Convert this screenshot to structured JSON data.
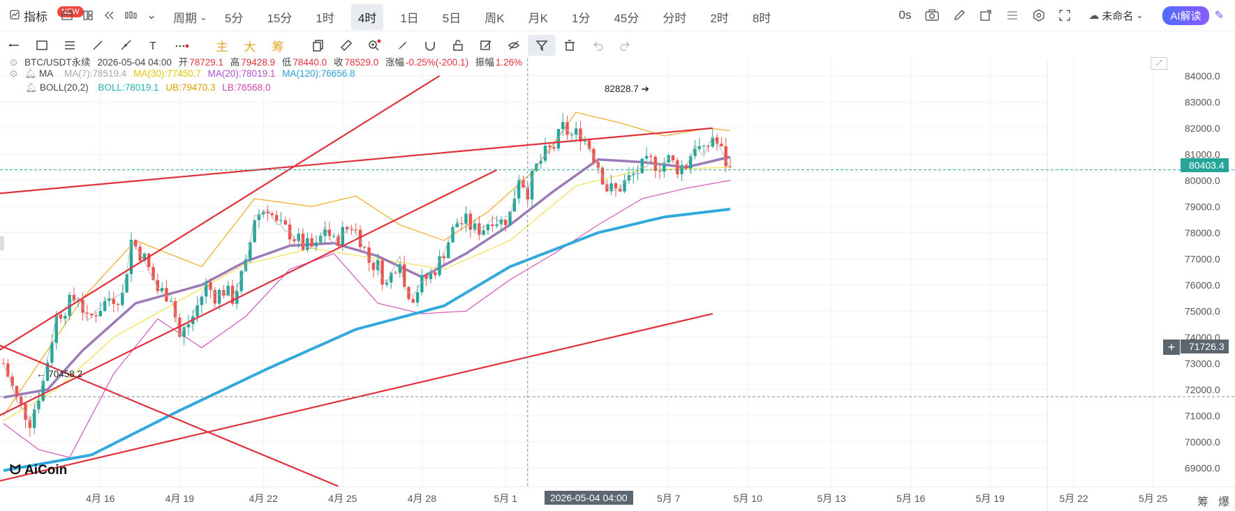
{
  "topbar": {
    "indicator_label": "指标",
    "new_badge": "NEW",
    "period_menu_label": "周期",
    "periods": [
      "5分",
      "15分",
      "1时",
      "4时",
      "1日",
      "5日",
      "周K",
      "月K",
      "1分",
      "45分",
      "分时",
      "2时",
      "8时"
    ],
    "active_period": "4时",
    "countdown": "0s",
    "layout_name": "未命名",
    "ai_button": "AI解读"
  },
  "toolbar2": {
    "tools": [
      "line-icon",
      "rect-icon",
      "parallel-icon",
      "segment-icon",
      "ray-icon",
      "text-icon",
      "more-icon",
      "主",
      "大",
      "筹",
      "copy-icon",
      "ruler-icon",
      "zoom-icon",
      "brush-icon",
      "magnet-icon",
      "lock-icon",
      "edit-icon",
      "eye-icon",
      "filter-icon",
      "trash-icon",
      "undo-icon",
      "redo-icon"
    ]
  },
  "legend": {
    "symbol": "BTC/USDT永续",
    "datetime": "2026-05-04 04:00",
    "open_label": "开",
    "open": "78729.1",
    "high_label": "高",
    "high": "79428.9",
    "low_label": "低",
    "low": "78440.0",
    "close_label": "收",
    "close": "78529.0",
    "change_label": "涨幅",
    "change": "-0.25%(-200.1)",
    "amp_label": "振幅",
    "amp": "1.26%",
    "ma_name": "MA",
    "ma7": "MA(7):78519.4",
    "ma30": "MA(30):77450.7",
    "ma20": "MA(20):78019.1",
    "ma120": "MA(120):76656.8",
    "boll_name": "BOLL(20,2)",
    "boll_mid": "BOLL:78019.1",
    "boll_ub": "UB:79470.3",
    "boll_lb": "LB:76568.0"
  },
  "colors": {
    "up": "#26a69a",
    "down": "#ef5350",
    "ma7": "#b0b0b0",
    "ma30": "#f5e04a",
    "ma20": "#9c7ab8",
    "ma120": "#32a9dc",
    "boll_ub": "#f0b030",
    "boll_lb": "#d65fbf",
    "trendline": "#e0303c",
    "last_price": "#26a69a",
    "crosshair": "#5c6670"
  },
  "annotations": {
    "high_mark": "82828.7",
    "low_mark": "70458.2",
    "last_price": "80403.4",
    "cross_price": "71726.3",
    "cross_time": "2026-05-04 04:00"
  },
  "bottom_right": [
    "筹",
    "爆"
  ],
  "logo": "AiCoin",
  "chart_data": {
    "type": "candlestick",
    "title": "BTC/USDT永续",
    "interval": "4时",
    "ylim": [
      68500,
      84500
    ],
    "y_ticks": [
      "84000.0",
      "83000.0",
      "82000.0",
      "81000.0",
      "80000.0",
      "79000.0",
      "78000.0",
      "77000.0",
      "76000.0",
      "75000.0",
      "74000.0",
      "73000.0",
      "72000.0",
      "71000.0",
      "70000.0",
      "69000.0"
    ],
    "x_ticks": [
      "4月 16",
      "4月 19",
      "4月 22",
      "4月 25",
      "4月 28",
      "5月 1",
      "5月 7",
      "5月 10",
      "5月 13",
      "5月 16",
      "5月 19",
      "5月 22",
      "5月 25"
    ],
    "grid": true,
    "price_path": [
      [
        0,
        73000
      ],
      [
        3,
        71600
      ],
      [
        6,
        70800
      ],
      [
        9,
        72300
      ],
      [
        12,
        74800
      ],
      [
        15,
        75300
      ],
      [
        17,
        75600
      ],
      [
        19,
        74600
      ],
      [
        21,
        75000
      ],
      [
        24,
        75500
      ],
      [
        27,
        75600
      ],
      [
        29,
        77700
      ],
      [
        32,
        77000
      ],
      [
        35,
        75800
      ],
      [
        38,
        75600
      ],
      [
        40,
        74000
      ],
      [
        43,
        74800
      ],
      [
        46,
        76000
      ],
      [
        48,
        75600
      ],
      [
        50,
        75800
      ],
      [
        52,
        75500
      ],
      [
        55,
        76700
      ],
      [
        57,
        78600
      ],
      [
        60,
        79000
      ],
      [
        62,
        78300
      ],
      [
        65,
        78000
      ],
      [
        68,
        77500
      ],
      [
        71,
        77400
      ],
      [
        73,
        78200
      ],
      [
        75,
        77600
      ],
      [
        77,
        78000
      ],
      [
        79,
        78300
      ],
      [
        81,
        77800
      ],
      [
        83,
        76900
      ],
      [
        85,
        76700
      ],
      [
        87,
        76000
      ],
      [
        89,
        76800
      ],
      [
        90,
        77100
      ],
      [
        91,
        75900
      ],
      [
        93,
        75600
      ],
      [
        95,
        76100
      ],
      [
        97,
        76400
      ],
      [
        99,
        76900
      ],
      [
        101,
        77700
      ],
      [
        103,
        78400
      ],
      [
        105,
        78400
      ],
      [
        107,
        78100
      ],
      [
        109,
        78200
      ],
      [
        111,
        78600
      ],
      [
        113,
        78400
      ],
      [
        115,
        78700
      ],
      [
        117,
        80200
      ],
      [
        119,
        79600
      ],
      [
        121,
        80500
      ],
      [
        123,
        81000
      ],
      [
        125,
        81300
      ],
      [
        127,
        82000
      ],
      [
        129,
        81700
      ],
      [
        131,
        81800
      ],
      [
        133,
        81300
      ],
      [
        135,
        80600
      ],
      [
        137,
        79700
      ],
      [
        139,
        79600
      ],
      [
        141,
        79900
      ],
      [
        143,
        80200
      ],
      [
        145,
        80500
      ],
      [
        147,
        80700
      ],
      [
        149,
        80600
      ],
      [
        151,
        80800
      ],
      [
        153,
        80500
      ],
      [
        155,
        80600
      ],
      [
        157,
        81400
      ],
      [
        159,
        81000
      ],
      [
        161,
        81700
      ],
      [
        163,
        81100
      ],
      [
        164,
        80700
      ],
      [
        165,
        80400
      ]
    ],
    "ma120_path": [
      [
        0,
        68900
      ],
      [
        20,
        69500
      ],
      [
        40,
        71200
      ],
      [
        60,
        72800
      ],
      [
        80,
        74300
      ],
      [
        100,
        75200
      ],
      [
        115,
        76700
      ],
      [
        135,
        78000
      ],
      [
        150,
        78600
      ],
      [
        165,
        78900
      ]
    ],
    "ma20_path": [
      [
        0,
        71700
      ],
      [
        10,
        72000
      ],
      [
        18,
        73500
      ],
      [
        30,
        75300
      ],
      [
        45,
        76000
      ],
      [
        55,
        76900
      ],
      [
        65,
        77500
      ],
      [
        75,
        77600
      ],
      [
        85,
        77100
      ],
      [
        95,
        76300
      ],
      [
        105,
        77200
      ],
      [
        115,
        78300
      ],
      [
        125,
        79600
      ],
      [
        135,
        80800
      ],
      [
        145,
        80700
      ],
      [
        155,
        80500
      ],
      [
        165,
        80900
      ]
    ],
    "ma30_path": [
      [
        0,
        70800
      ],
      [
        12,
        72000
      ],
      [
        25,
        74000
      ],
      [
        40,
        75400
      ],
      [
        55,
        76800
      ],
      [
        70,
        77400
      ],
      [
        85,
        77000
      ],
      [
        100,
        76600
      ],
      [
        115,
        77700
      ],
      [
        130,
        79800
      ],
      [
        145,
        80400
      ],
      [
        165,
        80500
      ]
    ],
    "boll_ub_path": [
      [
        0,
        71000
      ],
      [
        10,
        73500
      ],
      [
        18,
        75500
      ],
      [
        30,
        77700
      ],
      [
        45,
        76700
      ],
      [
        57,
        79300
      ],
      [
        70,
        79000
      ],
      [
        80,
        79400
      ],
      [
        90,
        78300
      ],
      [
        100,
        77700
      ],
      [
        110,
        78800
      ],
      [
        120,
        80300
      ],
      [
        130,
        82600
      ],
      [
        140,
        82200
      ],
      [
        150,
        81700
      ],
      [
        160,
        82000
      ],
      [
        165,
        81900
      ]
    ],
    "boll_lb_path": [
      [
        0,
        70700
      ],
      [
        8,
        69700
      ],
      [
        15,
        69400
      ],
      [
        25,
        72600
      ],
      [
        35,
        74700
      ],
      [
        45,
        73600
      ],
      [
        55,
        74800
      ],
      [
        65,
        76600
      ],
      [
        75,
        77200
      ],
      [
        85,
        75300
      ],
      [
        95,
        74900
      ],
      [
        105,
        75000
      ],
      [
        115,
        76200
      ],
      [
        125,
        77200
      ],
      [
        135,
        78300
      ],
      [
        145,
        79300
      ],
      [
        155,
        79700
      ],
      [
        165,
        80000
      ]
    ],
    "trendlines": [
      {
        "from": [
          -1,
          73500
        ],
        "to": [
          99,
          84000
        ]
      },
      {
        "from": [
          -1,
          79500
        ],
        "to": [
          161,
          82000
        ]
      },
      {
        "from": [
          -1,
          71000
        ],
        "to": [
          112,
          80400
        ]
      },
      {
        "from": [
          -1,
          68500
        ],
        "to": [
          161,
          74900
        ]
      },
      {
        "from": [
          -1,
          73700
        ],
        "to": [
          76,
          68300
        ]
      }
    ],
    "x_ticks_index": [
      22,
      40,
      59,
      77,
      95,
      114,
      151,
      169,
      188,
      206,
      224,
      243,
      261
    ],
    "high_index": 128,
    "low_index": 4,
    "cross_index": 119
  }
}
